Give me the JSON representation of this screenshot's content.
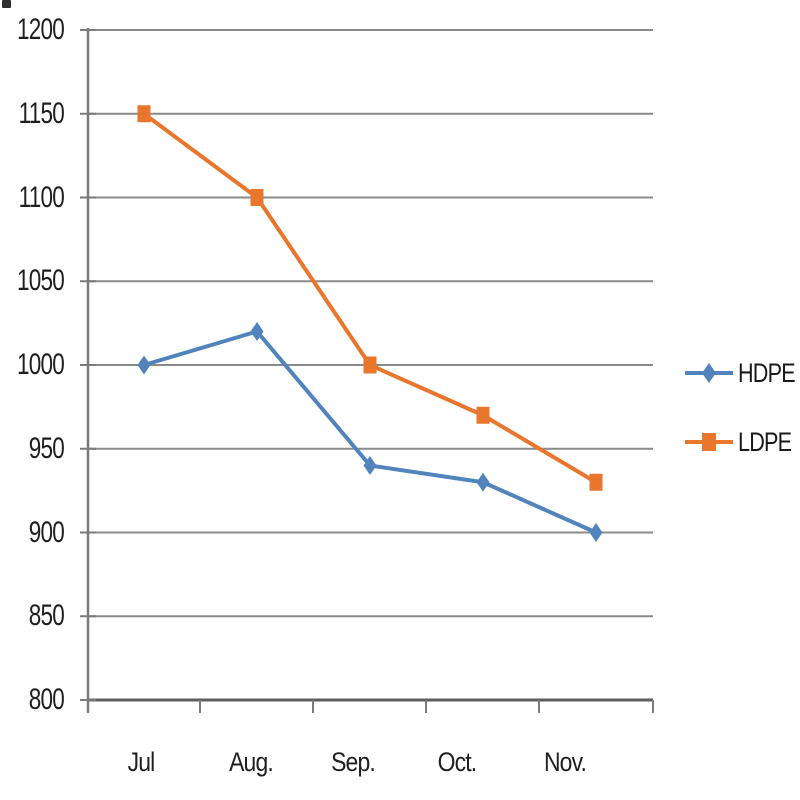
{
  "chart_data": {
    "type": "line",
    "title": "",
    "xlabel": "",
    "ylabel": "",
    "categories": [
      "Jul",
      "Aug.",
      "Sep.",
      "Oct.",
      "Nov."
    ],
    "series": [
      {
        "name": "HDPE",
        "marker": "diamond",
        "color": "#5184BD",
        "values": [
          1000,
          1020,
          940,
          930,
          900
        ]
      },
      {
        "name": "LDPE",
        "marker": "square",
        "color": "#E8762D",
        "values": [
          1150,
          1100,
          1000,
          970,
          930
        ]
      }
    ],
    "ylim": [
      800,
      1200
    ],
    "ytick_step": 50,
    "ytick_labels": [
      "1200",
      "1150",
      "1100",
      "1050",
      "1000",
      "950",
      "900",
      "850",
      "800"
    ],
    "grid": true,
    "legend_position": "right"
  },
  "colors": {
    "background": "#FFFFFF",
    "gridline": "#8A8A8A",
    "axis": "#7A7A7A",
    "x_axis": "#5E5E5E",
    "text": "#1F1F1F",
    "hdpe": "#5184BD",
    "ldpe": "#E8762D"
  }
}
